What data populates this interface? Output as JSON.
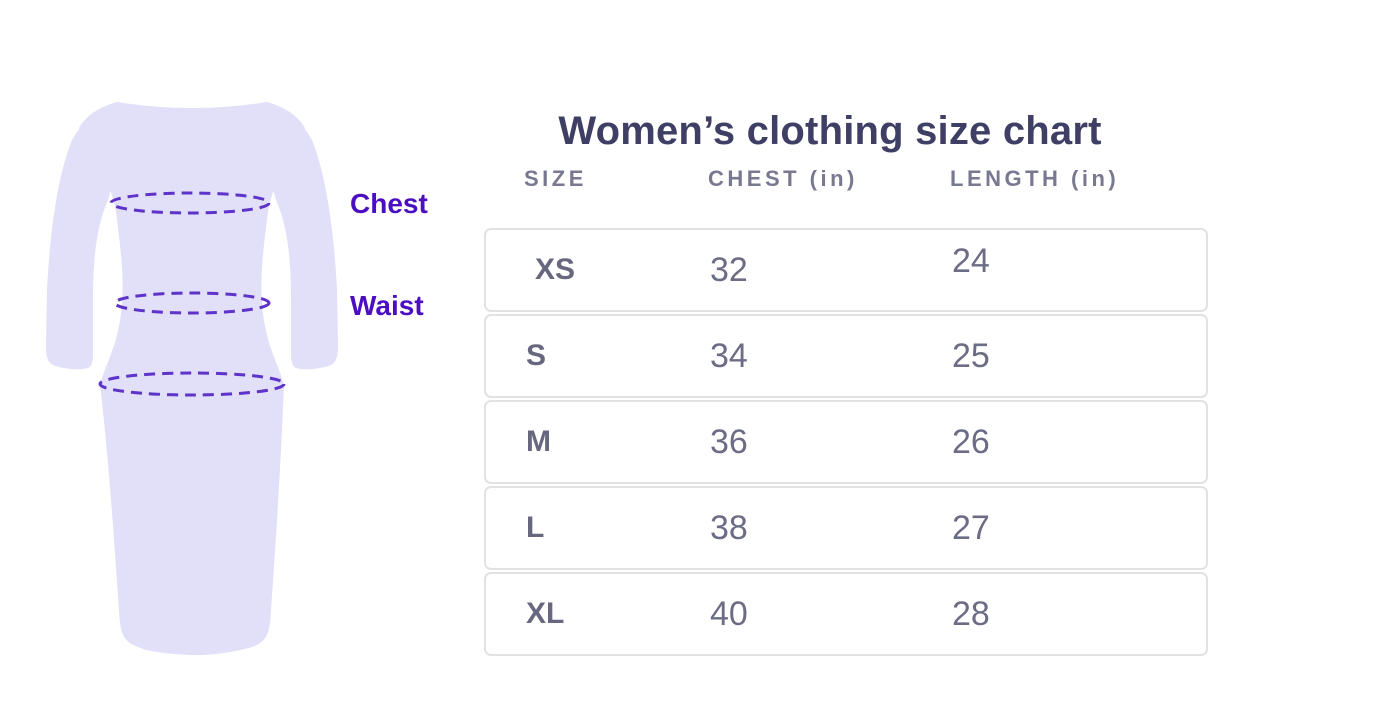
{
  "title": "Women’s clothing size chart",
  "diagram": {
    "garment": "dress-silhouette",
    "fill_color": "#e2dff9",
    "measure_line_color": "#5d33c9",
    "label_color": "#4c0ec2",
    "labels": [
      {
        "text": "Chest"
      },
      {
        "text": "Waist"
      }
    ],
    "measurement_lines": [
      "chest",
      "waist",
      "hip"
    ]
  },
  "table": {
    "headers": [
      "SIZE",
      "CHEST (in)",
      "LENGTH (in)"
    ],
    "rows": [
      [
        "XS",
        "32",
        "24"
      ],
      [
        "S",
        "34",
        "25"
      ],
      [
        "M",
        "36",
        "26"
      ],
      [
        "L",
        "38",
        "27"
      ],
      [
        "XL",
        "40",
        "28"
      ]
    ]
  },
  "chart_data": {
    "type": "table",
    "title": "Women’s clothing size chart",
    "columns": [
      "SIZE",
      "CHEST (in)",
      "LENGTH (in)"
    ],
    "rows": [
      {
        "size": "XS",
        "chest_in": 32,
        "length_in": 24
      },
      {
        "size": "S",
        "chest_in": 34,
        "length_in": 25
      },
      {
        "size": "M",
        "chest_in": 36,
        "length_in": 26
      },
      {
        "size": "L",
        "chest_in": 38,
        "length_in": 27
      },
      {
        "size": "XL",
        "chest_in": 40,
        "length_in": 28
      }
    ]
  }
}
